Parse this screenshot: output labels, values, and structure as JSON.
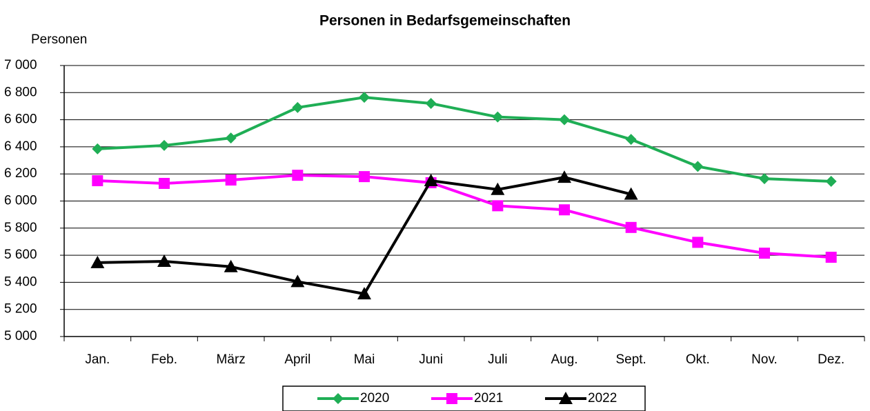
{
  "chart_data": {
    "type": "line",
    "title": "Personen in Bedarfsgemeinschaften",
    "y_label": "Personen",
    "categories": [
      "Jan.",
      "Feb.",
      "März",
      "April",
      "Mai",
      "Juni",
      "Juli",
      "Aug.",
      "Sept.",
      "Okt.",
      "Nov.",
      "Dez."
    ],
    "series": [
      {
        "name": "2020",
        "color": "#1fae55",
        "marker": "diamond",
        "values": [
          6385,
          6410,
          6465,
          6690,
          6765,
          6720,
          6620,
          6600,
          6455,
          6255,
          6165,
          6145
        ]
      },
      {
        "name": "2021",
        "color": "#ff00ff",
        "marker": "square",
        "values": [
          6150,
          6130,
          6155,
          6190,
          6180,
          6135,
          5965,
          5935,
          5805,
          5695,
          5615,
          5585
        ]
      },
      {
        "name": "2022",
        "color": "#000000",
        "marker": "triangle",
        "values": [
          5545,
          5555,
          5515,
          5405,
          5315,
          6150,
          6085,
          6175,
          6050,
          null,
          null,
          null
        ]
      }
    ],
    "ylim": [
      5000,
      7000
    ],
    "yticks": [
      {
        "value": 5000,
        "label": "5 000"
      },
      {
        "value": 5200,
        "label": "5 200"
      },
      {
        "value": 5400,
        "label": "5 400"
      },
      {
        "value": 5600,
        "label": "5 600"
      },
      {
        "value": 5800,
        "label": "5 800"
      },
      {
        "value": 6000,
        "label": "6 000"
      },
      {
        "value": 6200,
        "label": "6 200"
      },
      {
        "value": 6400,
        "label": "6 400"
      },
      {
        "value": 6600,
        "label": "6 600"
      },
      {
        "value": 6800,
        "label": "6 800"
      },
      {
        "value": 7000,
        "label": "7 000"
      }
    ],
    "grid": true,
    "legend": "bottom"
  }
}
